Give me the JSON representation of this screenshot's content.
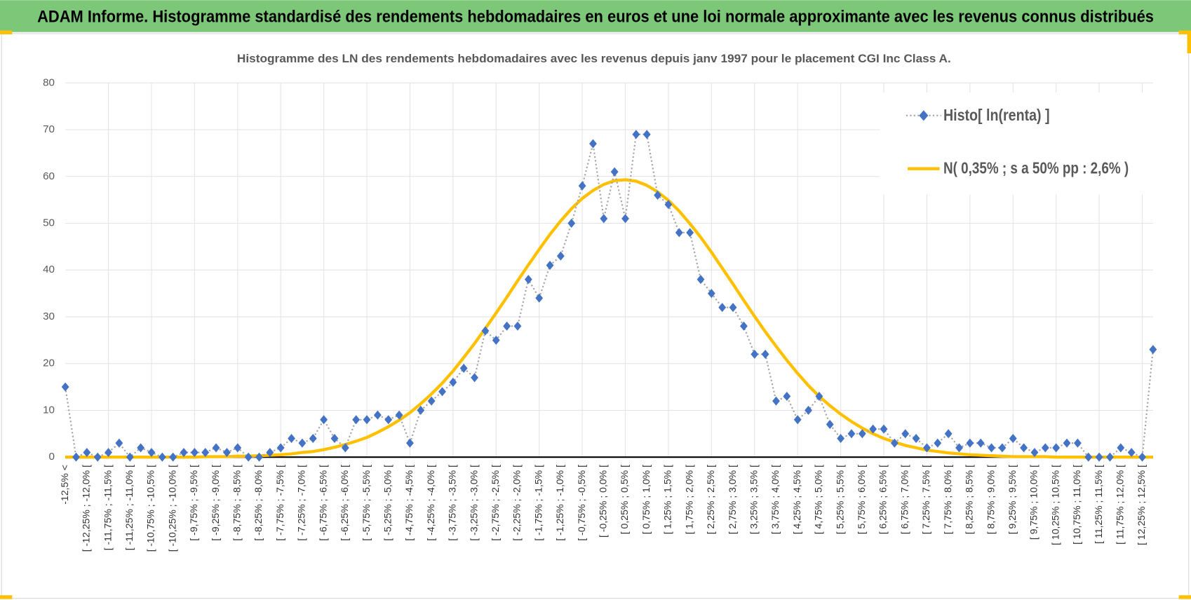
{
  "header": {
    "title": "ADAM Informe. Histogramme standardisé des rendements hebdomadaires en euros et une loi normale approximante avec les revenus connus distribués"
  },
  "chart_data": {
    "type": "line",
    "title": "Histogramme des LN des rendements hebdomadaires avec les revenus depuis janv 1997 pour le placement CGI Inc Class A.",
    "categories": [
      "-12,5% <",
      null,
      "[ -12,25% ; -12,0% [",
      null,
      "[ -11,75% ; -11,5% [",
      null,
      "[ -11,25% ; -11,0% [",
      null,
      "[ -10,75% ; -10,5% [",
      null,
      "[ -10,25% ; -10,0% [",
      null,
      "[ -9,75% ; -9,5% [",
      null,
      "[ -9,25% ; -9,0% [",
      null,
      "[ -8,75% ; -8,5% [",
      null,
      "[ -8,25% ; -8,0% [",
      null,
      "[ -7,75% ; -7,5% [",
      null,
      "[ -7,25% ; -7,0% [",
      null,
      "[ -6,75% ; -6,5% [",
      null,
      "[ -6,25% ; -6,0% [",
      null,
      "[ -5,75% ; -5,5% [",
      null,
      "[ -5,25% ; -5,0% [",
      null,
      "[ -4,75% ; -4,5% [",
      null,
      "[ -4,25% ; -4,0% [",
      null,
      "[ -3,75% ; -3,5% [",
      null,
      "[ -3,25% ; -3,0% [",
      null,
      "[ -2,75% ; -2,5% [",
      null,
      "[ -2,25% ; -2,0% [",
      null,
      "[ -1,75% ; -1,5% [",
      null,
      "[ -1,25% ; -1,0% [",
      null,
      "[ -0,75% ; -0,5% [",
      null,
      "[ -0,25% ; 0,0% [",
      null,
      "[ 0,25% ; 0,5% [",
      null,
      "[ 0,75% ; 1,0% [",
      null,
      "[ 1,25% ; 1,5% [",
      null,
      "[ 1,75% ; 2,0% [",
      null,
      "[ 2,25% ; 2,5% [",
      null,
      "[ 2,75% ; 3,0% [",
      null,
      "[ 3,25% ; 3,5% [",
      null,
      "[ 3,75% ; 4,0% [",
      null,
      "[ 4,25% ; 4,5% [",
      null,
      "[ 4,75% ; 5,0% [",
      null,
      "[ 5,25% ; 5,5% [",
      null,
      "[ 5,75% ; 6,0% [",
      null,
      "[ 6,25% ; 6,5% [",
      null,
      "[ 6,75% ; 7,0% [",
      null,
      "[ 7,25% ; 7,5% [",
      null,
      "[ 7,75% ; 8,0% [",
      null,
      "[ 8,25% ; 8,5% [",
      null,
      "[ 8,75% ; 9,0% [",
      null,
      "[ 9,25% ; 9,5% [",
      null,
      "[ 9,75% ; 10,0% [",
      null,
      "[ 10,25% ; 10,5% [",
      null,
      "[ 10,75% ; 11,0% [",
      null,
      "[ 11,25% ; 11,5% [",
      null,
      "[ 11,75% ; 12,0% [",
      null,
      "[ 12,25% ; 12,5% [",
      null
    ],
    "series": [
      {
        "name": "Histo[ ln(renta) ]",
        "color": "#4472c4",
        "line_color": "#a5a5a5",
        "values": [
          15,
          0,
          1,
          0,
          1,
          3,
          0,
          2,
          1,
          0,
          0,
          1,
          1,
          1,
          2,
          1,
          2,
          0,
          0,
          1,
          2,
          4,
          3,
          4,
          8,
          4,
          2,
          8,
          8,
          9,
          8,
          9,
          3,
          10,
          12,
          14,
          16,
          19,
          17,
          27,
          25,
          28,
          28,
          38,
          34,
          41,
          43,
          50,
          58,
          67,
          51,
          61,
          51,
          69,
          69,
          56,
          54,
          48,
          48,
          38,
          35,
          32,
          32,
          28,
          22,
          22,
          12,
          13,
          8,
          10,
          13,
          7,
          4,
          5,
          5,
          6,
          6,
          3,
          5,
          4,
          2,
          3,
          5,
          2,
          3,
          3,
          2,
          2,
          4,
          2,
          1,
          2,
          2,
          3,
          3,
          0,
          0,
          0,
          2,
          1,
          0,
          23
        ]
      },
      {
        "name": "N( 0,35% ; s a 50% pp : 2,6% )",
        "color": "#ffc000",
        "values": [
          0,
          0,
          0,
          0,
          0,
          0,
          0,
          0,
          0,
          0,
          0,
          0,
          0,
          0.1,
          0.1,
          0.1,
          0.2,
          0.2,
          0.3,
          0.4,
          0.5,
          0.7,
          1.0,
          1.2,
          1.6,
          2.1,
          2.7,
          3.4,
          4.2,
          5.3,
          6.5,
          7.9,
          9.5,
          11.4,
          13.5,
          15.8,
          18.4,
          21.3,
          24.3,
          27.5,
          30.8,
          34.2,
          37.7,
          41.1,
          44.4,
          47.6,
          50.5,
          53.1,
          55.3,
          57.0,
          58.3,
          59.1,
          59.3,
          59.0,
          58.1,
          56.7,
          54.9,
          52.6,
          49.9,
          47.0,
          43.8,
          40.4,
          37.0,
          33.5,
          30.1,
          26.8,
          23.7,
          20.7,
          17.9,
          15.3,
          13.0,
          11.0,
          9.2,
          7.6,
          6.2,
          5.0,
          4.0,
          3.2,
          2.5,
          2.0,
          1.5,
          1.2,
          0.9,
          0.7,
          0.5,
          0.4,
          0.3,
          0.2,
          0.1,
          0.1,
          0.1,
          0.1,
          0,
          0,
          0,
          0,
          0,
          0,
          0,
          0,
          0,
          0
        ]
      }
    ],
    "ylim": [
      0,
      80
    ],
    "yticks": [
      0,
      10,
      20,
      30,
      40,
      50,
      60,
      70,
      80
    ],
    "grid": true,
    "legend": "top-right"
  }
}
